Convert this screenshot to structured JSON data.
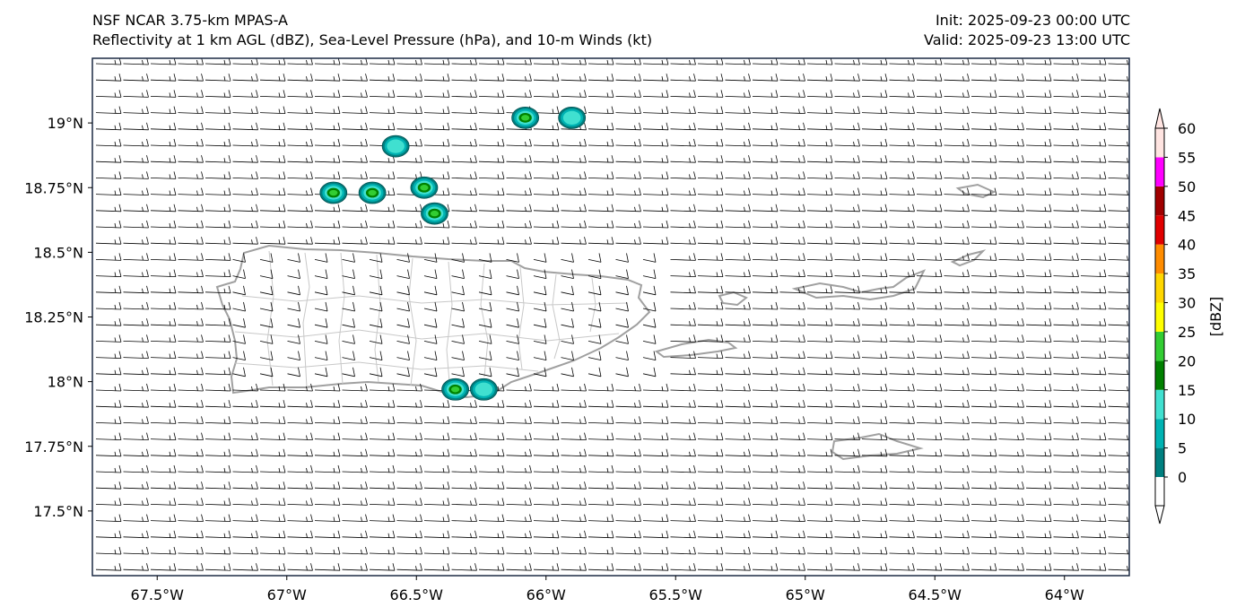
{
  "header": {
    "left_line1": "NSF NCAR 3.75-km MPAS-A",
    "left_line2": "Reflectivity at 1 km AGL (dBZ), Sea-Level Pressure (hPa), and 10-m Winds (kt)",
    "right_line1": "Init: 2025-09-23 00:00 UTC",
    "right_line2": "Valid: 2025-09-23 13:00 UTC"
  },
  "map": {
    "lon_range": [
      -67.75,
      -63.75
    ],
    "lat_range": [
      17.25,
      19.25
    ],
    "lon_ticks": [
      {
        "value": -67.5,
        "label": "67.5°W"
      },
      {
        "value": -67.0,
        "label": "67°W"
      },
      {
        "value": -66.5,
        "label": "66.5°W"
      },
      {
        "value": -66.0,
        "label": "66°W"
      },
      {
        "value": -65.5,
        "label": "65.5°W"
      },
      {
        "value": -65.0,
        "label": "65°W"
      },
      {
        "value": -64.5,
        "label": "64.5°W"
      },
      {
        "value": -64.0,
        "label": "64°W"
      }
    ],
    "lat_ticks": [
      {
        "value": 19.0,
        "label": "19°N"
      },
      {
        "value": 18.75,
        "label": "18.75°N"
      },
      {
        "value": 18.5,
        "label": "18.5°N"
      },
      {
        "value": 18.25,
        "label": "18.25°N"
      },
      {
        "value": 18.0,
        "label": "18°N"
      },
      {
        "value": 17.75,
        "label": "17.75°N"
      },
      {
        "value": 17.5,
        "label": "17.5°N"
      }
    ],
    "cells": [
      {
        "lon": -66.08,
        "lat": 19.02,
        "max_dbz": 27
      },
      {
        "lon": -65.9,
        "lat": 19.02,
        "max_dbz": 14
      },
      {
        "lon": -66.58,
        "lat": 18.91,
        "max_dbz": 12
      },
      {
        "lon": -66.82,
        "lat": 18.73,
        "max_dbz": 27
      },
      {
        "lon": -66.67,
        "lat": 18.73,
        "max_dbz": 32
      },
      {
        "lon": -66.47,
        "lat": 18.75,
        "max_dbz": 27
      },
      {
        "lon": -66.43,
        "lat": 18.65,
        "max_dbz": 32
      },
      {
        "lon": -66.35,
        "lat": 17.97,
        "max_dbz": 27
      },
      {
        "lon": -66.24,
        "lat": 17.97,
        "max_dbz": 12
      }
    ],
    "land_color": "#a0a0a0",
    "wind_color": "#000000"
  },
  "colorbar": {
    "label": "[dBZ]",
    "ticks": [
      "0",
      "5",
      "10",
      "15",
      "20",
      "25",
      "30",
      "35",
      "40",
      "45",
      "50",
      "55",
      "60"
    ],
    "colors": [
      "#008080",
      "#00b3b3",
      "#40e0d0",
      "#008000",
      "#32cd32",
      "#ffff00",
      "#ffd700",
      "#ff8c00",
      "#e00000",
      "#a00000",
      "#ff00ff",
      "#ffe4e1"
    ]
  }
}
